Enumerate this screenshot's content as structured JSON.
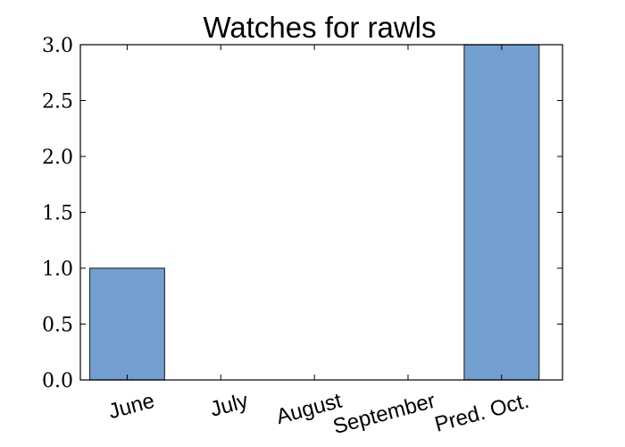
{
  "chart_data": {
    "type": "bar",
    "title": "Watches for rawls",
    "xlabel": "",
    "ylabel": "",
    "categories": [
      "June",
      "July",
      "August",
      "September",
      "Pred. Oct."
    ],
    "values": [
      1,
      0,
      0,
      0,
      3
    ],
    "ylim": [
      0,
      3
    ],
    "yticks": [
      "0.0",
      "0.5",
      "1.0",
      "1.5",
      "2.0",
      "2.5",
      "3.0"
    ],
    "bar_color": "#729fcf",
    "bar_edge_color": "#2e3436",
    "grid": false,
    "legend": "none"
  }
}
